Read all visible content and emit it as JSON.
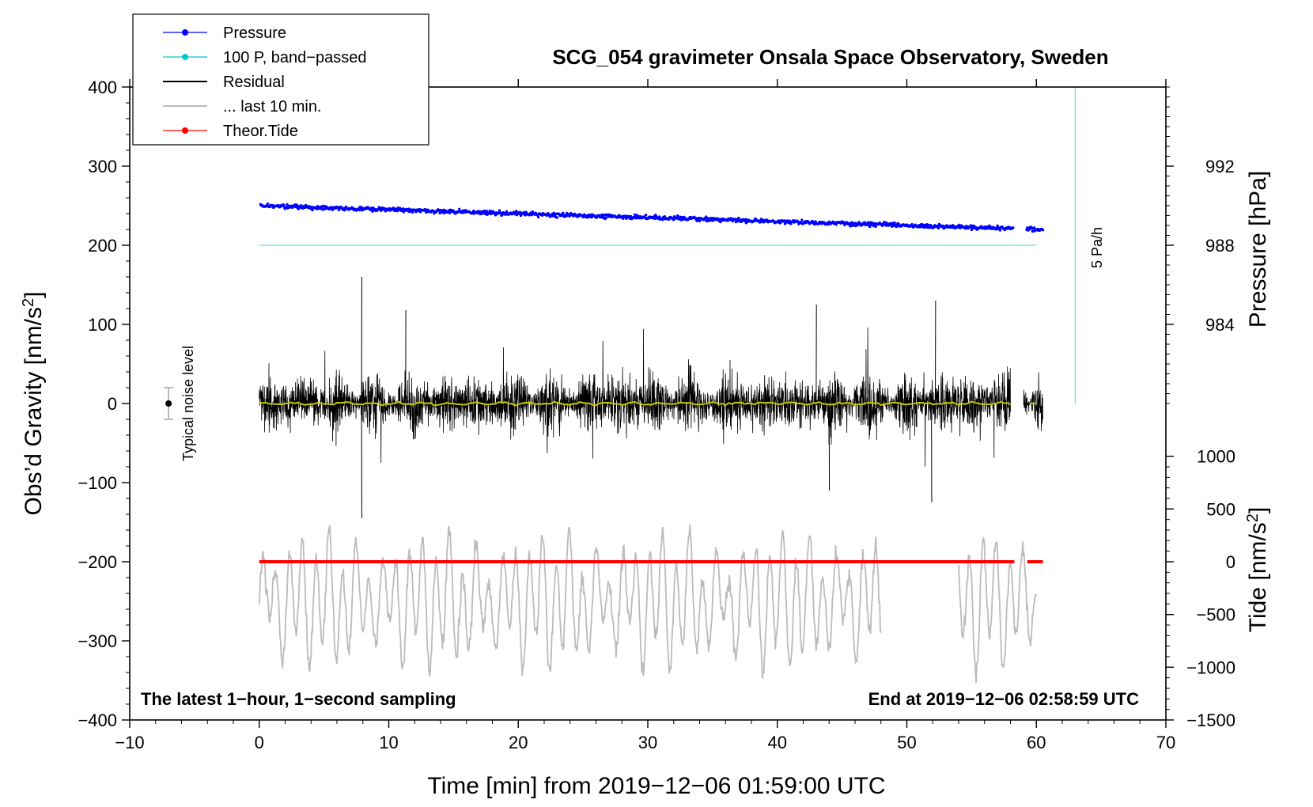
{
  "chart_data": {
    "type": "line",
    "title": "SCG_054 gravimeter Onsala Space Observatory, Sweden",
    "xlabel": "Time [min] from 2019−12−06 01:59:00 UTC",
    "ylabel_left": "Obs’d Gravity [nm/s",
    "ylabel_left_sup": "2",
    "ylabel_left_close": "]",
    "ylabel_right_pressure": "Pressure [hPa]",
    "ylabel_right_tide": "Tide [nm/s",
    "ylabel_right_tide_sup": "2",
    "ylabel_right_tide_close": "]",
    "xlim": [
      -10,
      70
    ],
    "ylim": [
      -400,
      400
    ],
    "x_ticks": [
      "−10",
      "0",
      "10",
      "20",
      "30",
      "40",
      "50",
      "60",
      "70"
    ],
    "x_tick_values": [
      -10,
      0,
      10,
      20,
      30,
      40,
      50,
      60,
      70
    ],
    "y_ticks": [
      "400",
      "300",
      "200",
      "100",
      "0",
      "−100",
      "−200",
      "−300",
      "−400"
    ],
    "y_tick_values": [
      400,
      300,
      200,
      100,
      0,
      -100,
      -200,
      -300,
      -400
    ],
    "pressure_axis": {
      "ticks": [
        "992",
        "988",
        "984"
      ],
      "values": [
        992,
        988,
        984
      ],
      "at_gravity": [
        300,
        200,
        100
      ],
      "unit": "hPa"
    },
    "tide_axis": {
      "ticks": [
        "1000",
        "500",
        "0",
        "−500",
        "−1000",
        "−1500"
      ],
      "values": [
        1000,
        500,
        0,
        -500,
        -1000,
        -1500
      ],
      "at_gravity": [
        -66.7,
        -133.3,
        -200,
        -266.7,
        -333.3,
        -400
      ]
    },
    "legend": [
      {
        "label": "Pressure",
        "color": "#0000ff",
        "style": "line-dot"
      },
      {
        "label": "100 P, band−passed",
        "color": "#00c8c8",
        "style": "line-dot"
      },
      {
        "label": "Residual",
        "color": "#000000",
        "style": "line"
      },
      {
        "label": "... last 10 min.",
        "color": "#bbbbbb",
        "style": "line"
      },
      {
        "label": "Theor.Tide",
        "color": "#ff0000",
        "style": "line-dot"
      }
    ],
    "series": [
      {
        "name": "Pressure",
        "color": "#0000ff",
        "x_range": [
          0,
          60.5
        ],
        "y_start": 250,
        "y_end": 220,
        "unit": "nm/s2 plot level"
      },
      {
        "name": "100 P, band-passed",
        "color": "#66dddd",
        "x_range": [
          0,
          60
        ],
        "y": 200
      },
      {
        "name": "Residual",
        "color": "#000000",
        "x_range": [
          0,
          60.5
        ],
        "gap": [
          58,
          59
        ],
        "y_typical_range": [
          -60,
          60
        ],
        "y_peak_max": 160,
        "y_peak_min": -145
      },
      {
        "name": "Residual smoothed",
        "color": "#c8c800",
        "x_range": [
          0,
          60
        ],
        "y": 0
      },
      {
        "name": "... last 10 min.",
        "color": "#bbbbbb",
        "segments": [
          [
            0,
            48
          ],
          [
            54,
            60
          ]
        ],
        "y_center": -250,
        "y_max": -117,
        "y_min": -365
      },
      {
        "name": "Theor.Tide",
        "color": "#ff0000",
        "x_range": [
          0,
          60.5
        ],
        "y": -200
      }
    ],
    "noise_marker": {
      "x": -7,
      "y": 0,
      "y_err": 20,
      "label": "Typical noise level"
    },
    "rate_marker": {
      "x": 63,
      "y_from": 0,
      "y_to": 400,
      "label": "5 Pa/h",
      "color": "#66dddd"
    },
    "annotations": {
      "left_note": "The latest 1−hour, 1−second sampling",
      "right_note": "End at 2019−12−06 02:58:59 UTC"
    },
    "grid": false
  }
}
